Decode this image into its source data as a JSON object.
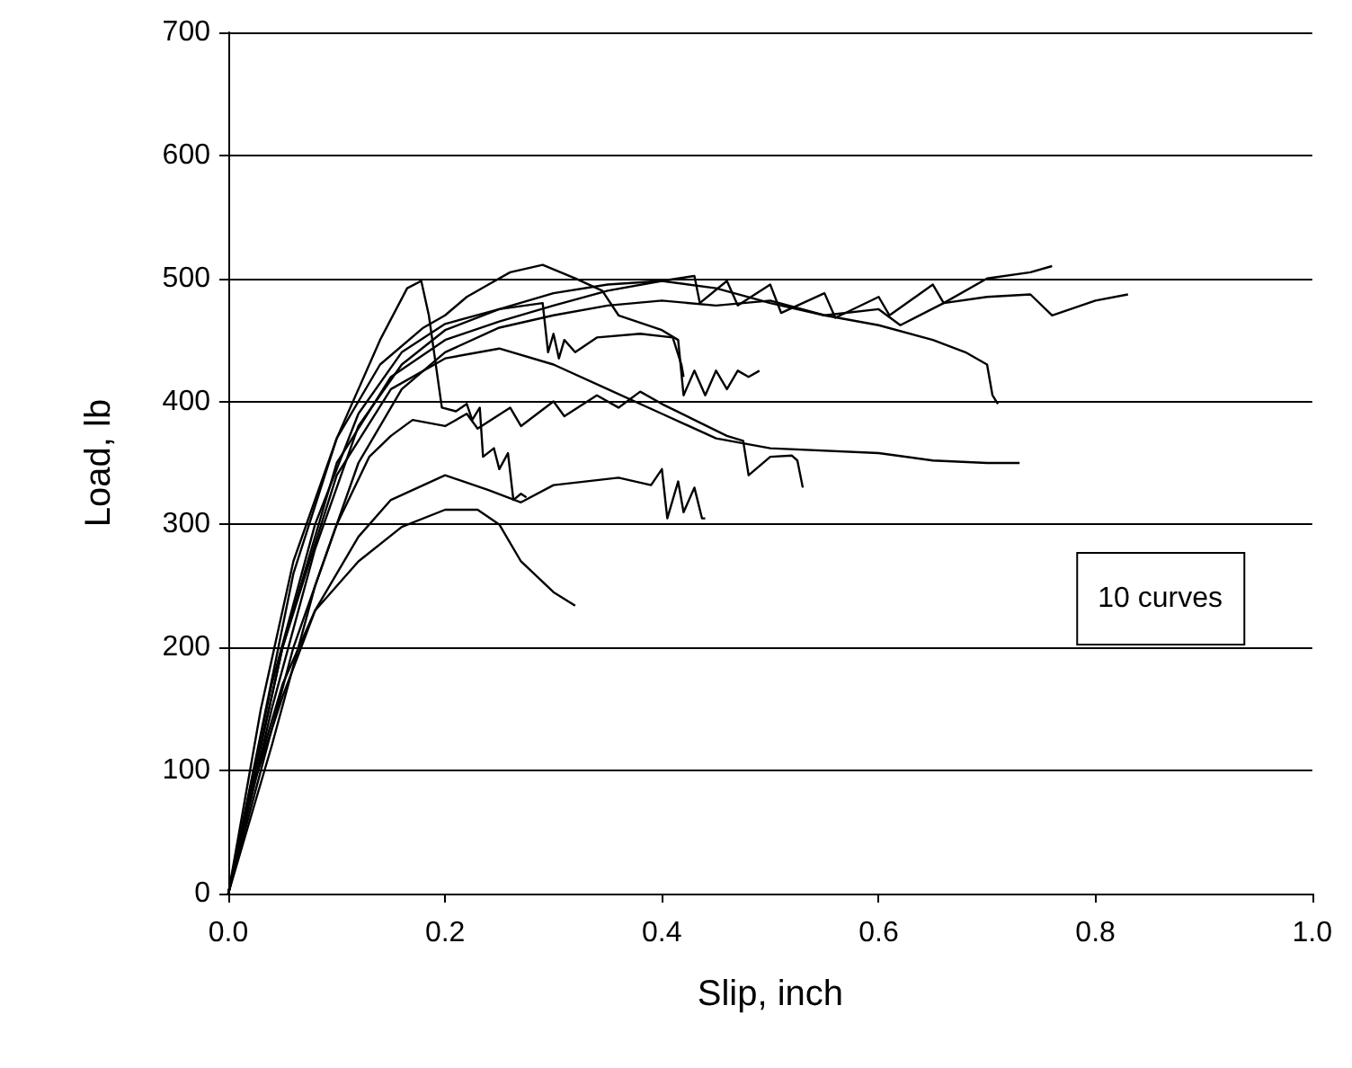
{
  "chart_data": {
    "type": "line",
    "xlabel": "Slip, inch",
    "ylabel": "Load, lb",
    "annotations": [
      "10 curves"
    ],
    "xlim": [
      0,
      1
    ],
    "xticks": [
      {
        "value": 0,
        "label": "0.0"
      },
      {
        "value": 0.2,
        "label": "0.2"
      },
      {
        "value": 0.4,
        "label": "0.4"
      },
      {
        "value": 0.6,
        "label": "0.6"
      },
      {
        "value": 0.8,
        "label": "0.8"
      },
      {
        "value": 1,
        "label": "1.0"
      }
    ],
    "ylim": [
      0,
      700
    ],
    "yticks": [
      0,
      100,
      200,
      300,
      400,
      500,
      600,
      700
    ],
    "grid": "y",
    "marker": "none",
    "line_style": "solid",
    "series": [
      {
        "color": "#000000",
        "x": [
          0,
          0.03,
          0.06,
          0.1,
          0.14,
          0.165,
          0.178,
          0.185,
          0.197,
          0.21,
          0.22,
          0.225,
          0.232,
          0.235,
          0.245,
          0.25,
          0.258,
          0.263,
          0.27,
          0.275
        ],
        "values": [
          0,
          130,
          260,
          370,
          450,
          492,
          498,
          470,
          395,
          392,
          398,
          385,
          395,
          355,
          362,
          345,
          358,
          320,
          325,
          322
        ]
      },
      {
        "color": "#000000",
        "x": [
          0,
          0.03,
          0.05,
          0.08,
          0.12,
          0.16,
          0.2,
          0.23,
          0.25,
          0.27,
          0.3,
          0.32
        ],
        "values": [
          0,
          110,
          170,
          230,
          270,
          298,
          312,
          312,
          300,
          270,
          245,
          234
        ]
      },
      {
        "color": "#000000",
        "x": [
          0,
          0.02,
          0.05,
          0.08,
          0.12,
          0.15,
          0.2,
          0.24,
          0.27,
          0.3,
          0.36,
          0.39,
          0.4,
          0.405,
          0.415,
          0.42,
          0.43,
          0.437,
          0.44
        ],
        "values": [
          0,
          80,
          160,
          230,
          290,
          320,
          340,
          328,
          318,
          332,
          338,
          332,
          345,
          305,
          335,
          310,
          330,
          305,
          305
        ]
      },
      {
        "color": "#000000",
        "x": [
          0,
          0.05,
          0.1,
          0.15,
          0.2,
          0.25,
          0.3,
          0.35,
          0.4,
          0.45,
          0.5,
          0.6,
          0.65,
          0.7,
          0.73
        ],
        "values": [
          0,
          200,
          340,
          410,
          435,
          443,
          430,
          410,
          390,
          370,
          362,
          358,
          352,
          350,
          350
        ]
      },
      {
        "color": "#000000",
        "x": [
          0,
          0.03,
          0.06,
          0.1,
          0.13,
          0.15,
          0.17,
          0.2,
          0.22,
          0.23,
          0.26,
          0.27,
          0.3,
          0.31,
          0.34,
          0.36,
          0.38,
          0.4,
          0.43,
          0.46,
          0.475,
          0.48,
          0.5,
          0.52,
          0.525,
          0.53
        ],
        "values": [
          0,
          100,
          200,
          300,
          355,
          372,
          385,
          380,
          390,
          378,
          395,
          380,
          400,
          388,
          405,
          395,
          408,
          398,
          385,
          372,
          368,
          340,
          355,
          356,
          352,
          330
        ]
      },
      {
        "color": "#000000",
        "x": [
          0,
          0.03,
          0.06,
          0.1,
          0.14,
          0.18,
          0.2,
          0.22,
          0.24,
          0.26,
          0.29,
          0.32,
          0.345,
          0.36,
          0.4,
          0.415,
          0.42,
          0.43,
          0.44,
          0.45,
          0.46,
          0.47,
          0.48,
          0.49
        ],
        "values": [
          0,
          150,
          270,
          370,
          430,
          460,
          470,
          485,
          495,
          505,
          511,
          500,
          490,
          470,
          458,
          450,
          405,
          425,
          405,
          425,
          410,
          425,
          420,
          425
        ]
      },
      {
        "color": "#000000",
        "x": [
          0,
          0.04,
          0.08,
          0.12,
          0.16,
          0.2,
          0.25,
          0.29,
          0.295,
          0.3,
          0.305,
          0.31,
          0.32,
          0.34,
          0.38,
          0.41,
          0.418,
          0.42
        ],
        "values": [
          0,
          170,
          300,
          390,
          440,
          463,
          475,
          480,
          440,
          455,
          435,
          450,
          440,
          452,
          455,
          452,
          430,
          420
        ]
      },
      {
        "color": "#000000",
        "x": [
          0,
          0.04,
          0.08,
          0.12,
          0.16,
          0.2,
          0.25,
          0.3,
          0.35,
          0.4,
          0.45,
          0.5,
          0.55,
          0.6,
          0.65,
          0.68,
          0.7,
          0.705,
          0.71
        ],
        "values": [
          0,
          150,
          280,
          380,
          430,
          458,
          475,
          488,
          495,
          498,
          492,
          480,
          470,
          462,
          450,
          440,
          430,
          405,
          398
        ]
      },
      {
        "color": "#000000",
        "x": [
          0,
          0.05,
          0.1,
          0.15,
          0.2,
          0.25,
          0.3,
          0.35,
          0.4,
          0.43,
          0.435,
          0.46,
          0.47,
          0.5,
          0.51,
          0.55,
          0.56,
          0.6,
          0.61,
          0.65,
          0.66,
          0.7,
          0.74,
          0.76
        ],
        "values": [
          0,
          200,
          350,
          420,
          450,
          465,
          478,
          490,
          498,
          502,
          480,
          498,
          478,
          495,
          472,
          488,
          468,
          485,
          470,
          495,
          480,
          500,
          505,
          510
        ]
      },
      {
        "color": "#000000",
        "x": [
          0,
          0.04,
          0.08,
          0.12,
          0.16,
          0.2,
          0.25,
          0.3,
          0.35,
          0.4,
          0.45,
          0.5,
          0.55,
          0.6,
          0.62,
          0.66,
          0.7,
          0.74,
          0.76,
          0.8,
          0.83
        ],
        "values": [
          0,
          120,
          250,
          350,
          410,
          440,
          460,
          470,
          478,
          482,
          478,
          482,
          470,
          475,
          462,
          480,
          485,
          487,
          470,
          482,
          487
        ]
      }
    ]
  }
}
